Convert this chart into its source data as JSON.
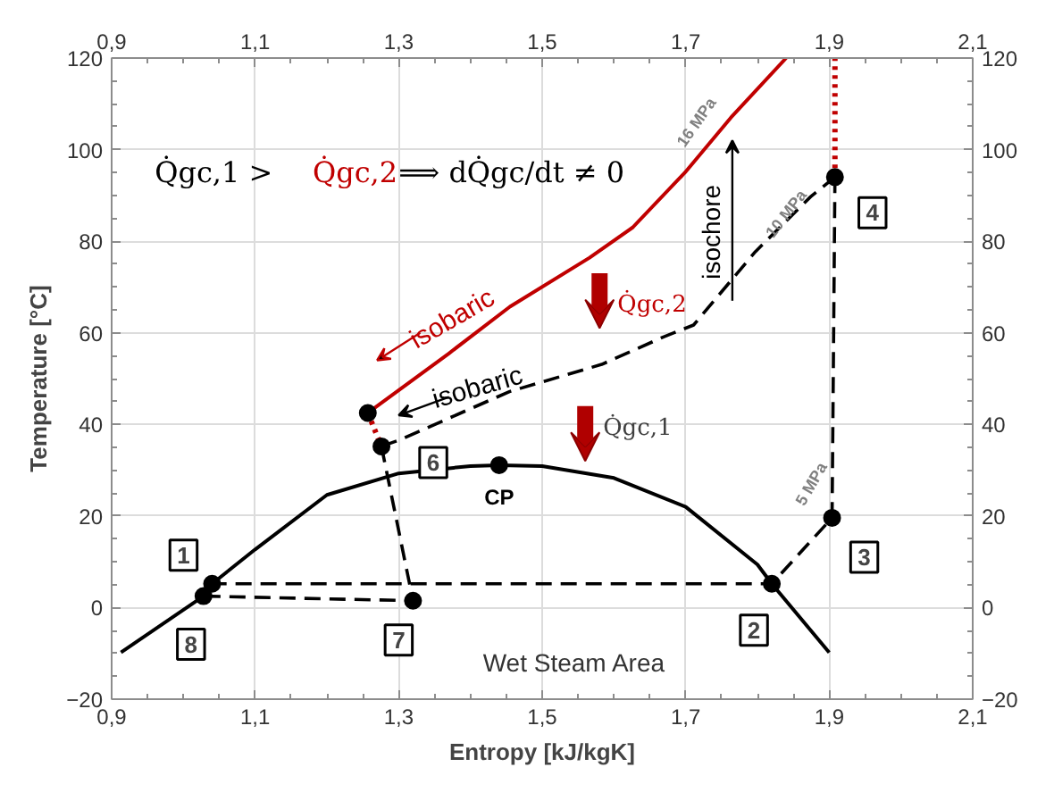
{
  "chart_data": {
    "type": "line",
    "xlabel": "Entropy [kJ/kgK]",
    "ylabel": "Temperature [°C]",
    "xlim": [
      0.9,
      2.1
    ],
    "ylim": [
      -20,
      120
    ],
    "x2lim": [
      0.9,
      2.1
    ],
    "y2lim": [
      -20,
      120
    ],
    "xticks": [
      {
        "value": 0.9,
        "label": "0,9"
      },
      {
        "value": 1.1,
        "label": "1,1"
      },
      {
        "value": 1.3,
        "label": "1,3"
      },
      {
        "value": 1.5,
        "label": "1,5"
      },
      {
        "value": 1.7,
        "label": "1,7"
      },
      {
        "value": 1.9,
        "label": "1,9"
      },
      {
        "value": 2.1,
        "label": "2,1"
      }
    ],
    "x2ticks": [
      {
        "value": 0.9,
        "label": "0,9"
      },
      {
        "value": 1.1,
        "label": "1,1"
      },
      {
        "value": 1.3,
        "label": "1,3"
      },
      {
        "value": 1.5,
        "label": "1,5"
      },
      {
        "value": 1.7,
        "label": "1,7"
      },
      {
        "value": 1.9,
        "label": "1,9"
      },
      {
        "value": 2.1,
        "label": "2,1"
      }
    ],
    "yticks": [
      -20,
      0,
      20,
      40,
      60,
      80,
      100,
      120
    ],
    "y2ticks": [
      -20,
      0,
      20,
      40,
      60,
      80,
      100,
      120
    ],
    "grid": true,
    "series": [
      {
        "color": "#000000",
        "line_style": "solid",
        "x": [
          0.913,
          1.028,
          1.04,
          1.1,
          1.2,
          1.3,
          1.4,
          1.44,
          1.5,
          1.6,
          1.7,
          1.8,
          1.82,
          1.9
        ],
        "values": [
          -9.8,
          2.5,
          5.2,
          12.7,
          24.6,
          29.3,
          30.9,
          31.1,
          30.9,
          28.3,
          22,
          9.4,
          5.2,
          -9.8
        ]
      },
      {
        "color": "#c00000",
        "line_style": "solid",
        "x": [
          1.257,
          1.37,
          1.455,
          1.566,
          1.626,
          1.699,
          1.763,
          1.84
        ],
        "values": [
          42.5,
          55.5,
          65.7,
          76.4,
          83,
          95,
          107,
          120
        ]
      },
      {
        "color": "#c00000",
        "line_style": "dotted",
        "x": [
          1.257,
          1.276
        ],
        "values": [
          42.5,
          35.2
        ]
      },
      {
        "color": "#c00000",
        "line_style": "dotted",
        "x": [
          1.908,
          1.908
        ],
        "values": [
          94,
          120
        ]
      },
      {
        "color": "#000000",
        "line_style": "dashed",
        "x": [
          1.276,
          1.301,
          1.455,
          1.583,
          1.669,
          1.711,
          1.797,
          1.874,
          1.908
        ],
        "values": [
          35.2,
          36.6,
          47.2,
          53.1,
          59.1,
          61.7,
          77.7,
          89.7,
          94
        ]
      },
      {
        "color": "#000000",
        "line_style": "dashed",
        "x": [
          1.908,
          1.904,
          1.82,
          1.04
        ],
        "values": [
          94,
          19.6,
          5.2,
          5.2
        ]
      },
      {
        "color": "#000000",
        "line_style": "dashed",
        "x": [
          1.276,
          1.32,
          1.028
        ],
        "values": [
          35.2,
          1.5,
          2.5
        ]
      },
      {
        "type": "scatter",
        "marker": "circle",
        "color": "#000000",
        "x": [
          1.04,
          1.82,
          1.904,
          1.908,
          1.276,
          1.32,
          1.028,
          1.44,
          1.257
        ],
        "values": [
          5.2,
          5.2,
          19.6,
          94,
          35.2,
          1.5,
          2.5,
          31.1,
          42.5
        ]
      }
    ],
    "annotations": [
      "Q̇gc,1 >",
      "Q̇gc,2",
      "⟹ dQ̇gc/dt ≠ 0",
      "isobaric",
      "isobaric",
      "isochore",
      "16 MPa",
      "10 MPa",
      "5 MPa",
      "Q̇gc,2",
      "Q̇gc,1",
      "CP",
      "Wet Steam Area",
      {
        "text": "1",
        "x": 1.04,
        "y": 5.2
      },
      {
        "text": "2",
        "x": 1.82,
        "y": 5.2
      },
      {
        "text": "3",
        "x": 1.904,
        "y": 19.6
      },
      {
        "text": "4",
        "x": 1.908,
        "y": 94
      },
      {
        "text": "6",
        "x": 1.276,
        "y": 35.2
      },
      {
        "text": "7",
        "x": 1.32,
        "y": 1.5
      },
      {
        "text": "8",
        "x": 1.028,
        "y": 2.5
      }
    ]
  }
}
